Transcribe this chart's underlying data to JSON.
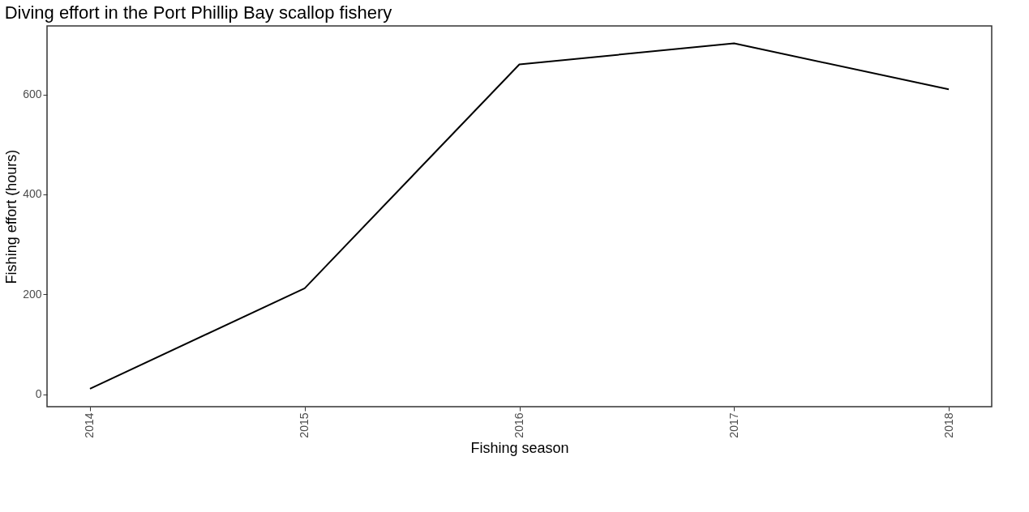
{
  "chart_data": {
    "type": "line",
    "title": "Diving effort in the Port Phillip Bay scallop fishery",
    "xlabel": "Fishing season",
    "ylabel": "Fishing effort (hours)",
    "x": [
      2014,
      2015,
      2016,
      2017,
      2018
    ],
    "series": [
      {
        "color": "#000000",
        "values": [
          11,
          212,
          660,
          702,
          610
        ]
      }
    ],
    "xlim": [
      2013.8,
      2018.2
    ],
    "xticks": [
      2014,
      2015,
      2016,
      2017,
      2018
    ],
    "ylim": [
      -25,
      737
    ],
    "yticks": [
      0,
      200,
      400,
      600
    ],
    "grid": false,
    "marker": "none",
    "line_style": "solid"
  }
}
